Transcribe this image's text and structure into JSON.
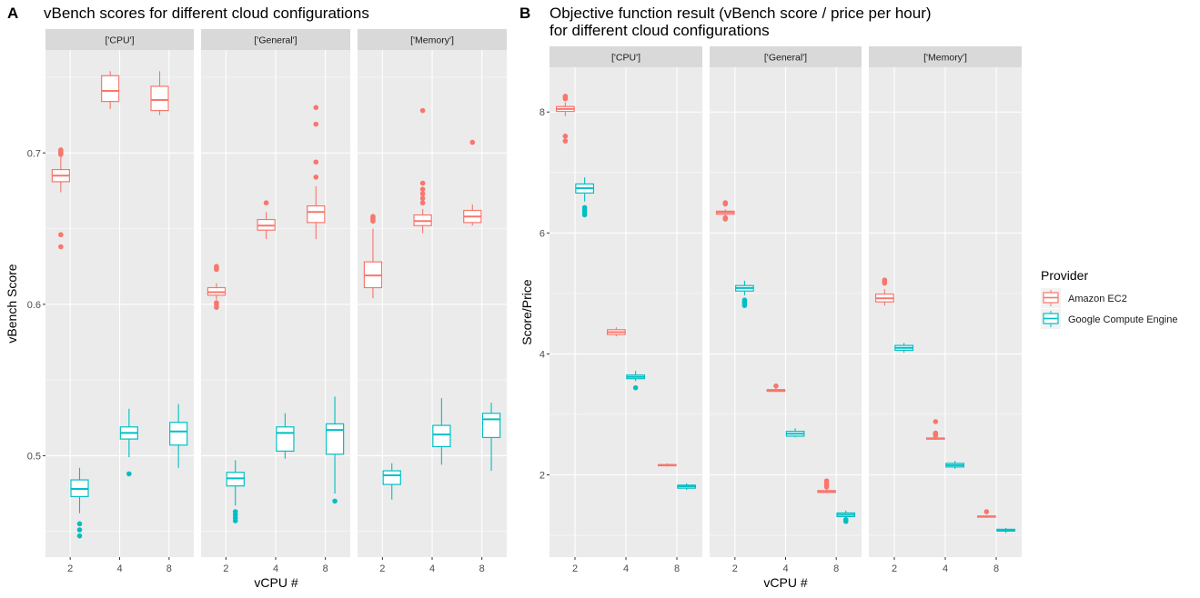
{
  "figure": {
    "panel_a_letter": "A",
    "panel_b_letter": "B",
    "panel_a_title": "vBench scores for different cloud configurations",
    "panel_b_title_line1": "Objective function result (vBench score / price per hour)",
    "panel_b_title_line2": "for different cloud configurations",
    "legend_title": "Provider",
    "legend_items": [
      {
        "label": "Amazon EC2",
        "color": "#F8766D"
      },
      {
        "label": "Google Compute Engine",
        "color": "#00BFC4"
      }
    ],
    "colors": {
      "amazon": "#F8766D",
      "google": "#00BFC4",
      "panel_bg": "#EBEBEB",
      "strip_bg": "#D9D9D9",
      "grid": "#FFFFFF"
    }
  },
  "chart_data": [
    {
      "type": "boxplot",
      "title": "vBench scores for different cloud configurations",
      "xlabel": "vCPU #",
      "ylabel": "vBench Score",
      "ylim": [
        0.433,
        0.768
      ],
      "yticks": [
        0.5,
        0.6,
        0.7
      ],
      "ytick_labels": [
        "0.5",
        "0.6",
        "0.7"
      ],
      "facets": [
        "['CPU']",
        "['General']",
        "['Memory']"
      ],
      "categories": [
        "2",
        "4",
        "8"
      ],
      "series": [
        {
          "name": "Amazon EC2",
          "boxes": [
            {
              "facet": "['CPU']",
              "x": "2",
              "whisker_low": 0.674,
              "q1": 0.681,
              "median": 0.685,
              "q3": 0.689,
              "whisker_high": 0.698,
              "outliers": [
                0.638,
                0.646,
                0.699,
                0.7,
                0.701,
                0.702
              ]
            },
            {
              "facet": "['CPU']",
              "x": "4",
              "whisker_low": 0.729,
              "q1": 0.734,
              "median": 0.741,
              "q3": 0.751,
              "whisker_high": 0.754,
              "outliers": []
            },
            {
              "facet": "['CPU']",
              "x": "8",
              "whisker_low": 0.725,
              "q1": 0.728,
              "median": 0.735,
              "q3": 0.744,
              "whisker_high": 0.754,
              "outliers": []
            },
            {
              "facet": "['General']",
              "x": "2",
              "whisker_low": 0.603,
              "q1": 0.606,
              "median": 0.608,
              "q3": 0.611,
              "whisker_high": 0.614,
              "outliers": [
                0.598,
                0.6,
                0.601,
                0.623,
                0.624,
                0.625
              ]
            },
            {
              "facet": "['General']",
              "x": "4",
              "whisker_low": 0.643,
              "q1": 0.649,
              "median": 0.652,
              "q3": 0.656,
              "whisker_high": 0.661,
              "outliers": [
                0.667
              ]
            },
            {
              "facet": "['General']",
              "x": "8",
              "whisker_low": 0.643,
              "q1": 0.654,
              "median": 0.661,
              "q3": 0.665,
              "whisker_high": 0.678,
              "outliers": [
                0.684,
                0.694,
                0.719,
                0.73
              ]
            },
            {
              "facet": "['Memory']",
              "x": "2",
              "whisker_low": 0.604,
              "q1": 0.611,
              "median": 0.619,
              "q3": 0.628,
              "whisker_high": 0.65,
              "outliers": [
                0.655,
                0.656,
                0.657,
                0.658
              ]
            },
            {
              "facet": "['Memory']",
              "x": "4",
              "whisker_low": 0.647,
              "q1": 0.652,
              "median": 0.655,
              "q3": 0.659,
              "whisker_high": 0.663,
              "outliers": [
                0.667,
                0.67,
                0.673,
                0.676,
                0.68,
                0.728
              ]
            },
            {
              "facet": "['Memory']",
              "x": "8",
              "whisker_low": 0.652,
              "q1": 0.654,
              "median": 0.658,
              "q3": 0.662,
              "whisker_high": 0.666,
              "outliers": [
                0.707
              ]
            }
          ]
        },
        {
          "name": "Google Compute Engine",
          "boxes": [
            {
              "facet": "['CPU']",
              "x": "2",
              "whisker_low": 0.462,
              "q1": 0.473,
              "median": 0.478,
              "q3": 0.484,
              "whisker_high": 0.492,
              "outliers": [
                0.447,
                0.451,
                0.455
              ]
            },
            {
              "facet": "['CPU']",
              "x": "4",
              "whisker_low": 0.499,
              "q1": 0.511,
              "median": 0.515,
              "q3": 0.519,
              "whisker_high": 0.531,
              "outliers": [
                0.488
              ]
            },
            {
              "facet": "['CPU']",
              "x": "8",
              "whisker_low": 0.492,
              "q1": 0.507,
              "median": 0.516,
              "q3": 0.522,
              "whisker_high": 0.534,
              "outliers": []
            },
            {
              "facet": "['General']",
              "x": "2",
              "whisker_low": 0.467,
              "q1": 0.48,
              "median": 0.485,
              "q3": 0.489,
              "whisker_high": 0.497,
              "outliers": [
                0.457,
                0.459,
                0.461,
                0.463
              ]
            },
            {
              "facet": "['General']",
              "x": "4",
              "whisker_low": 0.498,
              "q1": 0.503,
              "median": 0.515,
              "q3": 0.519,
              "whisker_high": 0.528,
              "outliers": []
            },
            {
              "facet": "['General']",
              "x": "8",
              "whisker_low": 0.475,
              "q1": 0.501,
              "median": 0.517,
              "q3": 0.521,
              "whisker_high": 0.539,
              "outliers": [
                0.47
              ]
            },
            {
              "facet": "['Memory']",
              "x": "2",
              "whisker_low": 0.471,
              "q1": 0.481,
              "median": 0.487,
              "q3": 0.49,
              "whisker_high": 0.495,
              "outliers": []
            },
            {
              "facet": "['Memory']",
              "x": "4",
              "whisker_low": 0.494,
              "q1": 0.506,
              "median": 0.514,
              "q3": 0.52,
              "whisker_high": 0.538,
              "outliers": []
            },
            {
              "facet": "['Memory']",
              "x": "8",
              "whisker_low": 0.49,
              "q1": 0.512,
              "median": 0.524,
              "q3": 0.528,
              "whisker_high": 0.535,
              "outliers": []
            }
          ]
        }
      ]
    },
    {
      "type": "boxplot",
      "title": "Objective function result (vBench score / price per hour) for different cloud configurations",
      "xlabel": "vCPU #",
      "ylabel": "Score/Price",
      "ylim": [
        0.64,
        8.74
      ],
      "yticks": [
        2,
        4,
        6,
        8
      ],
      "ytick_labels": [
        "2",
        "4",
        "6",
        "8"
      ],
      "facets": [
        "['CPU']",
        "['General']",
        "['Memory']"
      ],
      "categories": [
        "2",
        "4",
        "8"
      ],
      "series": [
        {
          "name": "Amazon EC2",
          "boxes": [
            {
              "facet": "['CPU']",
              "x": "2",
              "whisker_low": 7.93,
              "q1": 8.01,
              "median": 8.05,
              "q3": 8.09,
              "whisker_high": 8.16,
              "outliers": [
                7.52,
                7.6,
                8.22,
                8.24,
                8.26
              ]
            },
            {
              "facet": "['CPU']",
              "x": "4",
              "whisker_low": 4.29,
              "q1": 4.32,
              "median": 4.36,
              "q3": 4.4,
              "whisker_high": 4.44,
              "outliers": []
            },
            {
              "facet": "['CPU']",
              "x": "8",
              "whisker_low": 2.14,
              "q1": 2.15,
              "median": 2.16,
              "q3": 2.17,
              "whisker_high": 2.19,
              "outliers": []
            },
            {
              "facet": "['General']",
              "x": "2",
              "whisker_low": 6.27,
              "q1": 6.31,
              "median": 6.34,
              "q3": 6.36,
              "whisker_high": 6.39,
              "outliers": [
                6.23,
                6.25,
                6.48,
                6.5
              ]
            },
            {
              "facet": "['General']",
              "x": "4",
              "whisker_low": 3.37,
              "q1": 3.38,
              "median": 3.39,
              "q3": 3.41,
              "whisker_high": 3.44,
              "outliers": [
                3.47
              ]
            },
            {
              "facet": "['General']",
              "x": "8",
              "whisker_low": 1.7,
              "q1": 1.71,
              "median": 1.72,
              "q3": 1.74,
              "whisker_high": 1.78,
              "outliers": [
                1.8,
                1.83,
                1.86,
                1.9
              ]
            },
            {
              "facet": "['Memory']",
              "x": "2",
              "whisker_low": 4.8,
              "q1": 4.86,
              "median": 4.92,
              "q3": 4.99,
              "whisker_high": 5.07,
              "outliers": [
                5.17,
                5.2,
                5.22
              ]
            },
            {
              "facet": "['Memory']",
              "x": "4",
              "whisker_low": 2.58,
              "q1": 2.59,
              "median": 2.6,
              "q3": 2.61,
              "whisker_high": 2.63,
              "outliers": [
                2.65,
                2.67,
                2.69,
                2.88
              ]
            },
            {
              "facet": "['Memory']",
              "x": "8",
              "whisker_low": 1.29,
              "q1": 1.3,
              "median": 1.31,
              "q3": 1.32,
              "whisker_high": 1.33,
              "outliers": [
                1.39
              ]
            }
          ]
        },
        {
          "name": "Google Compute Engine",
          "boxes": [
            {
              "facet": "['CPU']",
              "x": "2",
              "whisker_low": 6.52,
              "q1": 6.66,
              "median": 6.74,
              "q3": 6.81,
              "whisker_high": 6.92,
              "outliers": [
                6.3,
                6.34,
                6.38,
                6.42
              ]
            },
            {
              "facet": "['CPU']",
              "x": "4",
              "whisker_low": 3.55,
              "q1": 3.59,
              "median": 3.62,
              "q3": 3.65,
              "whisker_high": 3.72,
              "outliers": [
                3.44
              ]
            },
            {
              "facet": "['CPU']",
              "x": "8",
              "whisker_low": 1.75,
              "q1": 1.78,
              "median": 1.81,
              "q3": 1.83,
              "whisker_high": 1.86,
              "outliers": []
            },
            {
              "facet": "['General']",
              "x": "2",
              "whisker_low": 4.97,
              "q1": 5.04,
              "median": 5.09,
              "q3": 5.13,
              "whisker_high": 5.21,
              "outliers": [
                4.8,
                4.83,
                4.86,
                4.89
              ]
            },
            {
              "facet": "['General']",
              "x": "4",
              "whisker_low": 2.62,
              "q1": 2.64,
              "median": 2.68,
              "q3": 2.72,
              "whisker_high": 2.77,
              "outliers": []
            },
            {
              "facet": "['General']",
              "x": "8",
              "whisker_low": 1.29,
              "q1": 1.31,
              "median": 1.34,
              "q3": 1.37,
              "whisker_high": 1.41,
              "outliers": [
                1.23,
                1.26
              ]
            },
            {
              "facet": "['Memory']",
              "x": "2",
              "whisker_low": 4.02,
              "q1": 4.06,
              "median": 4.1,
              "q3": 4.14,
              "whisker_high": 4.18,
              "outliers": []
            },
            {
              "facet": "['Memory']",
              "x": "4",
              "whisker_low": 2.1,
              "q1": 2.13,
              "median": 2.16,
              "q3": 2.19,
              "whisker_high": 2.23,
              "outliers": []
            },
            {
              "facet": "['Memory']",
              "x": "8",
              "whisker_low": 1.04,
              "q1": 1.07,
              "median": 1.08,
              "q3": 1.1,
              "whisker_high": 1.12,
              "outliers": []
            }
          ]
        }
      ]
    }
  ]
}
